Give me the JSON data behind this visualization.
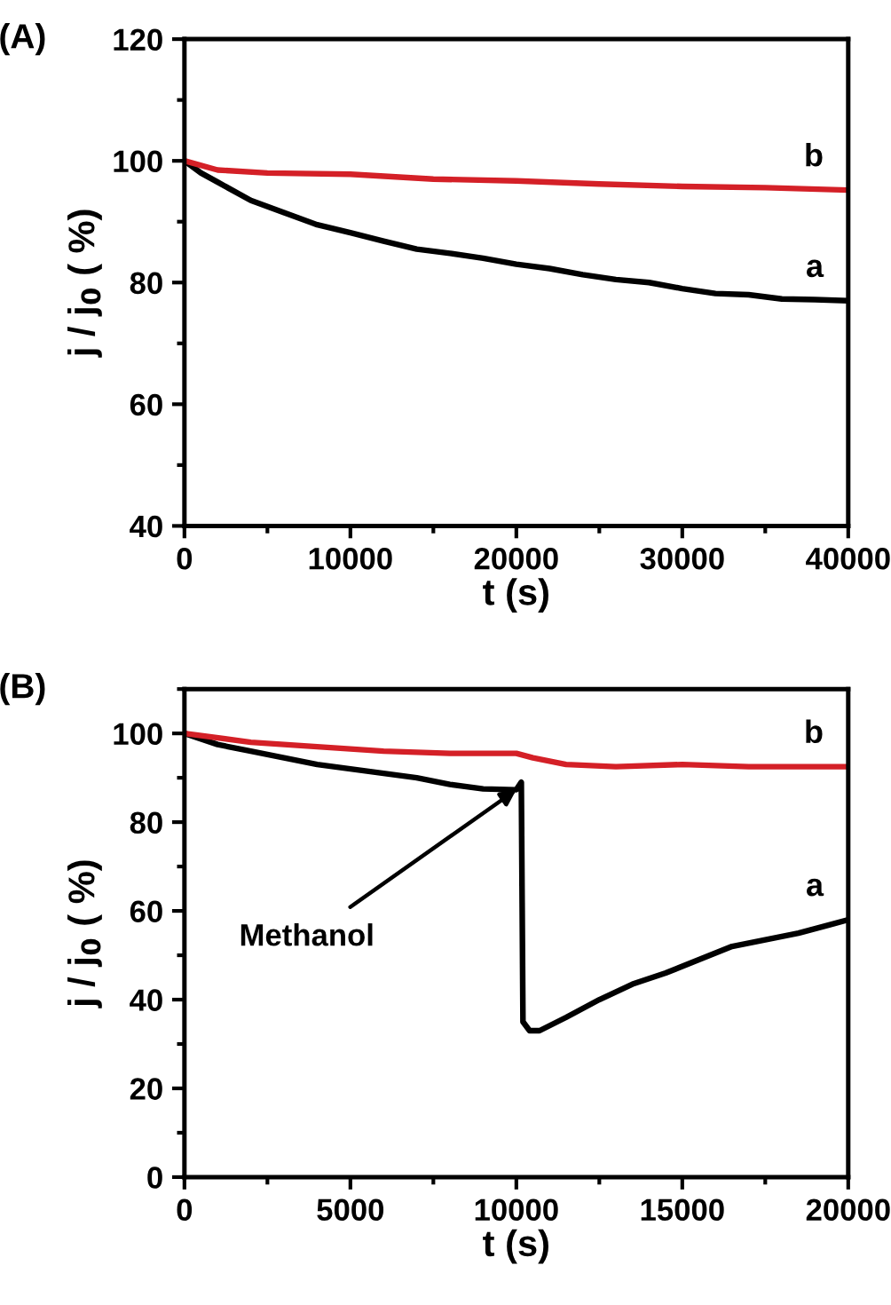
{
  "chart_data": [
    {
      "type": "line",
      "title": "(A)",
      "xlabel": "t (s)",
      "ylabel": "j / j$_{0}$ ( %)",
      "xlim": [
        0,
        40000
      ],
      "xticks": [
        0,
        10000,
        20000,
        30000,
        40000
      ],
      "ylim": [
        40,
        120
      ],
      "yticks": [
        40,
        60,
        80,
        100,
        120
      ],
      "grid": false,
      "legend": false,
      "marker": "none",
      "line_style": "solid",
      "series": [
        {
          "name": "a",
          "color": "#000000",
          "x": [
            0,
            1000,
            2000,
            4000,
            6000,
            8000,
            10000,
            12000,
            14000,
            16000,
            18000,
            20000,
            22000,
            24000,
            26000,
            28000,
            30000,
            32000,
            34000,
            36000,
            38000,
            40000
          ],
          "values": [
            100,
            98,
            96.5,
            93.5,
            91.5,
            89.5,
            88.2,
            86.8,
            85.5,
            84.8,
            84,
            83,
            82.3,
            81.3,
            80.5,
            80,
            79,
            78.2,
            78,
            77.3,
            77.2,
            77
          ]
        },
        {
          "name": "b",
          "color": "#d42027",
          "x": [
            0,
            2000,
            5000,
            10000,
            15000,
            20000,
            25000,
            30000,
            35000,
            40000
          ],
          "values": [
            100,
            98.5,
            98,
            97.8,
            97,
            96.7,
            96.2,
            95.8,
            95.6,
            95.2
          ]
        }
      ]
    },
    {
      "type": "line",
      "title": "(B)",
      "xlabel": "t (s)",
      "ylabel": "j / j$_{0}$ ( %)",
      "xlim": [
        0,
        20000
      ],
      "xticks": [
        0,
        5000,
        10000,
        15000,
        20000
      ],
      "ylim": [
        0,
        110
      ],
      "yticks": [
        0,
        20,
        40,
        60,
        80,
        100
      ],
      "grid": false,
      "legend": false,
      "marker": "none",
      "line_style": "solid",
      "annotations": [
        {
          "text": "Methanol",
          "x": 10000,
          "y": 87.3
        }
      ],
      "series": [
        {
          "name": "a",
          "color": "#000000",
          "x": [
            0,
            1000,
            2000,
            3000,
            4000,
            5000,
            6000,
            7000,
            8000,
            9000,
            10000,
            10150,
            10200,
            10400,
            10700,
            11500,
            12500,
            13500,
            14500,
            15500,
            16500,
            17500,
            18500,
            19500,
            20000
          ],
          "values": [
            100,
            97.5,
            96,
            94.5,
            93,
            92,
            91,
            90,
            88.5,
            87.5,
            87.3,
            89,
            35,
            33,
            33,
            36,
            40,
            43.5,
            46,
            49,
            52,
            53.5,
            55,
            57,
            58
          ]
        },
        {
          "name": "b",
          "color": "#d42027",
          "x": [
            0,
            2000,
            4000,
            6000,
            8000,
            10000,
            10500,
            11500,
            13000,
            15000,
            17000,
            20000
          ],
          "values": [
            100,
            98,
            97,
            96,
            95.5,
            95.5,
            94.5,
            93,
            92.5,
            93,
            92.5,
            92.5
          ]
        }
      ]
    }
  ]
}
